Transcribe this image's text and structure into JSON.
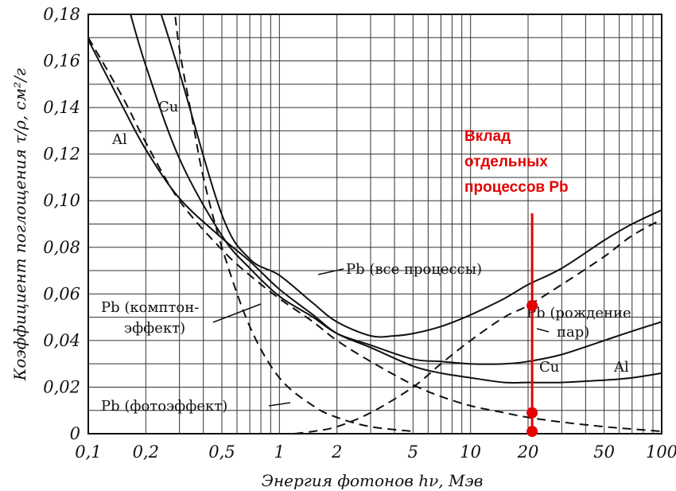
{
  "chart_data": {
    "type": "line",
    "xlabel": "Энергия фотонов hν, Мэв",
    "ylabel": "Коэффициент поглощения τ/ρ, см²/г",
    "x_scale": "log",
    "xlim": [
      0.1,
      100
    ],
    "ylim": [
      0,
      0.18
    ],
    "grid": true,
    "x_ticks": [
      {
        "value": 0.1,
        "label": "0,1"
      },
      {
        "value": 0.2,
        "label": "0,2"
      },
      {
        "value": 0.5,
        "label": "0,5"
      },
      {
        "value": 1,
        "label": "1"
      },
      {
        "value": 2,
        "label": "2"
      },
      {
        "value": 5,
        "label": "5"
      },
      {
        "value": 10,
        "label": "10"
      },
      {
        "value": 20,
        "label": "20"
      },
      {
        "value": 50,
        "label": "50"
      },
      {
        "value": 100,
        "label": "100"
      }
    ],
    "y_ticks": [
      {
        "value": 0,
        "label": "0"
      },
      {
        "value": 0.02,
        "label": "0,02"
      },
      {
        "value": 0.04,
        "label": "0,04"
      },
      {
        "value": 0.06,
        "label": "0,06"
      },
      {
        "value": 0.08,
        "label": "0,08"
      },
      {
        "value": 0.1,
        "label": "0,10"
      },
      {
        "value": 0.12,
        "label": "0,12"
      },
      {
        "value": 0.14,
        "label": "0,14"
      },
      {
        "value": 0.16,
        "label": "0,16"
      },
      {
        "value": 0.18,
        "label": "0,18"
      }
    ],
    "series": [
      {
        "name": "Al",
        "style": "solid",
        "x": [
          0.1,
          0.15,
          0.2,
          0.3,
          0.5,
          0.7,
          1,
          1.5,
          2,
          3,
          5,
          7,
          10,
          15,
          20,
          30,
          50,
          70,
          100
        ],
        "y": [
          0.169,
          0.141,
          0.122,
          0.101,
          0.084,
          0.074,
          0.062,
          0.051,
          0.043,
          0.037,
          0.029,
          0.026,
          0.024,
          0.022,
          0.022,
          0.022,
          0.023,
          0.024,
          0.026
        ]
      },
      {
        "name": "Cu",
        "style": "solid",
        "x": [
          0.16,
          0.2,
          0.3,
          0.5,
          0.7,
          1,
          1.5,
          2,
          3,
          5,
          7,
          10,
          15,
          20,
          30,
          50,
          70,
          100
        ],
        "y": [
          0.185,
          0.158,
          0.118,
          0.085,
          0.071,
          0.059,
          0.05,
          0.043,
          0.038,
          0.032,
          0.031,
          0.03,
          0.03,
          0.031,
          0.034,
          0.04,
          0.044,
          0.048
        ]
      },
      {
        "name": "Pb (все процессы)",
        "style": "solid",
        "x": [
          0.23,
          0.3,
          0.5,
          0.7,
          1,
          1.5,
          2,
          3,
          4,
          5,
          7,
          10,
          15,
          20,
          30,
          50,
          70,
          100
        ],
        "y": [
          0.185,
          0.155,
          0.094,
          0.075,
          0.068,
          0.056,
          0.048,
          0.042,
          0.042,
          0.043,
          0.046,
          0.051,
          0.058,
          0.064,
          0.071,
          0.083,
          0.09,
          0.096
        ]
      },
      {
        "name": "Pb (комптон-эффект)",
        "style": "dashed",
        "x": [
          0.1,
          0.15,
          0.2,
          0.3,
          0.5,
          0.7,
          1,
          1.5,
          2,
          3,
          5,
          7,
          10,
          15,
          20,
          30,
          50,
          70,
          100
        ],
        "y": [
          0.17,
          0.145,
          0.125,
          0.1,
          0.079,
          0.068,
          0.058,
          0.048,
          0.04,
          0.031,
          0.021,
          0.016,
          0.012,
          0.009,
          0.007,
          0.005,
          0.003,
          0.002,
          0.001
        ]
      },
      {
        "name": "Pb (фотоэффект)",
        "style": "dashed",
        "x": [
          0.28,
          0.3,
          0.35,
          0.4,
          0.5,
          0.7,
          1,
          1.5,
          2,
          3,
          5
        ],
        "y": [
          0.185,
          0.165,
          0.135,
          0.11,
          0.08,
          0.046,
          0.024,
          0.012,
          0.007,
          0.003,
          0.001
        ]
      },
      {
        "name": "Pb (рождение пар)",
        "style": "dashed",
        "x": [
          1.2,
          1.5,
          2,
          3,
          5,
          7,
          10,
          15,
          20,
          30,
          50,
          70,
          100
        ],
        "y": [
          0.0,
          0.001,
          0.003,
          0.009,
          0.02,
          0.03,
          0.04,
          0.05,
          0.055,
          0.064,
          0.076,
          0.085,
          0.092
        ]
      }
    ],
    "labels": [
      {
        "text": "Al",
        "series": "Al"
      },
      {
        "text": "Cu",
        "series": "Cu"
      },
      {
        "text": "Cu",
        "series": "Cu"
      },
      {
        "text": "Al",
        "series": "Al"
      },
      {
        "text": "Pb (все процессы)"
      },
      {
        "text": "Pb (комптон-"
      },
      {
        "text": "эффект)"
      },
      {
        "text": "Pb (фотоэффект)"
      },
      {
        "text": "Pb (рождение"
      },
      {
        "text": "пар)"
      }
    ],
    "annotation": {
      "lines": [
        "Вклад",
        "отдельных",
        "процессов Pb"
      ],
      "color": "#e50000",
      "x_value": 21,
      "marker_values": [
        0.055,
        0.009,
        0.001
      ]
    }
  }
}
